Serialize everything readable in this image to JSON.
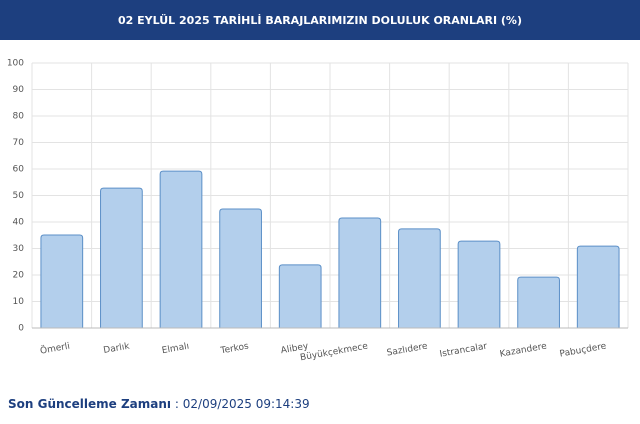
{
  "chart_data": {
    "type": "bar",
    "title": "02 EYLÜL 2025 TARİHLİ BARAJLARIMIZIN DOLULUK ORANLARI (%)",
    "categories": [
      "Ömerli",
      "Darlık",
      "Elmalı",
      "Terkos",
      "Alibey",
      "Büyükçekmece",
      "Sazlıdere",
      "Istrancalar",
      "Kazandere",
      "Pabuçdere"
    ],
    "values": [
      35.1,
      52.8,
      59.2,
      44.9,
      23.8,
      41.5,
      37.4,
      32.8,
      19.2,
      30.9
    ],
    "color": "#b3cfec",
    "border_color": "#5b8fc7",
    "ylim": [
      0,
      100
    ],
    "yticks": [
      0,
      10,
      20,
      30,
      40,
      50,
      60,
      70,
      80,
      90,
      100
    ],
    "grid": true
  },
  "footer": {
    "update_label": "Son Güncelleme Zamanı",
    "update_separator": ":",
    "update_time": "02/09/2025 09:14:39"
  }
}
